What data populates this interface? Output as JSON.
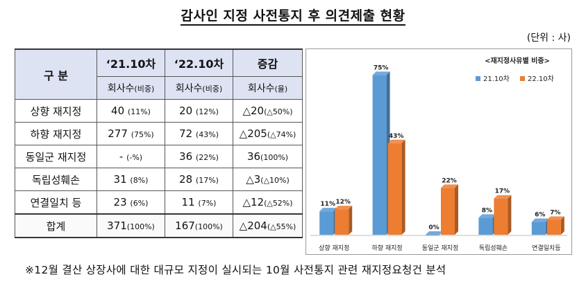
{
  "title": "감사인 지정 사전통지 후 의견제출 현황",
  "unit": "(단위 : 사)",
  "table": {
    "header": {
      "category": "구 분",
      "col1": "‘21.10차",
      "col2": "‘22.10차",
      "col3": "증감",
      "sub1_main": "회사수",
      "sub1_small": "(비중)",
      "sub2_main": "회사수",
      "sub2_small": "(비중)",
      "sub3_main": "회사수",
      "sub3_small": "(율)"
    },
    "rows": [
      {
        "label": "상향 재지정",
        "v1": "40",
        "p1": "(11%)",
        "v2": "20",
        "p2": "(12%)",
        "d": "△20",
        "dp": "(△50%)"
      },
      {
        "label": "하향 재지정",
        "v1": "277",
        "p1": "(75%)",
        "v2": "72",
        "p2": "(43%)",
        "d": "△205",
        "dp": "(△74%)"
      },
      {
        "label": "동일군 재지정",
        "v1": "-",
        "p1": "(-%)",
        "v2": "36",
        "p2": "(22%)",
        "d": "36",
        "dp": "(100%)"
      },
      {
        "label": "독립성훼손",
        "v1": "31",
        "p1": "(8%)",
        "v2": "28",
        "p2": "(17%)",
        "d": "△3",
        "dp": "(△10%)"
      },
      {
        "label": "연결일치 등",
        "v1": "23",
        "p1": "(6%)",
        "v2": "11",
        "p2": "(7%)",
        "d": "△12",
        "dp": "(△52%)"
      }
    ],
    "total": {
      "label": "합계",
      "v1": "371",
      "p1": "(100%)",
      "v2": "167",
      "p2": "(100%)",
      "d": "△204",
      "dp": "(△55%)"
    }
  },
  "chart_data": {
    "type": "bar",
    "title": "<재지정사유별 비중>",
    "categories": [
      "상향 재지정",
      "하향 재지정",
      "동일군 재지정",
      "독립성훼손",
      "연결일치등"
    ],
    "series": [
      {
        "name": "21.10차",
        "values": [
          11,
          75,
          0,
          8,
          6
        ],
        "color": "#5b9bd5"
      },
      {
        "name": "22.10차",
        "values": [
          12,
          43,
          22,
          17,
          7
        ],
        "color": "#ed7d31"
      }
    ],
    "value_labels": [
      [
        "11%",
        "75%",
        "0%",
        "8%",
        "6%"
      ],
      [
        "12%",
        "43%",
        "22%",
        "17%",
        "7%"
      ]
    ],
    "ylim": [
      0,
      80
    ],
    "grid": false,
    "legend": "top-right"
  },
  "note": "※12월 결산 상장사에 대한 대규모 지정이 실시되는 10월 사전통지 관련 재지정요청건 분석"
}
